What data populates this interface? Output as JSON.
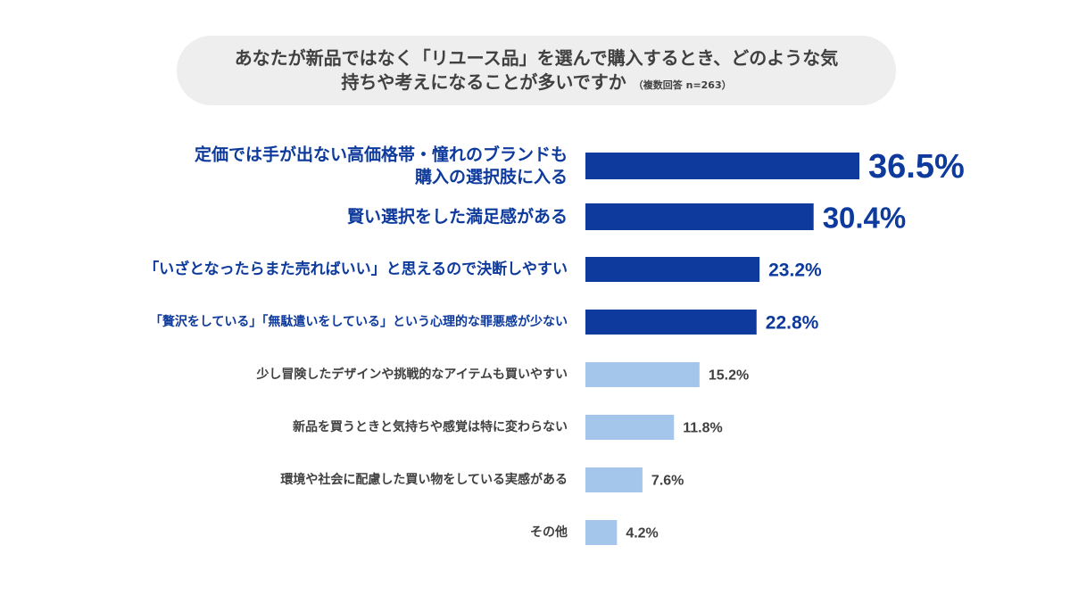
{
  "title": {
    "line1": "あなたが新品ではなく「リユース品」を選んで購入するとき、どのような気",
    "line2": "持ちや考えになることが多いですか",
    "note": "（複数回答 n=263）"
  },
  "colors": {
    "highlight": "#0d3a9c",
    "normal": "#a3c6ea",
    "highlight_text": "#0d3a9c",
    "normal_text": "#404040"
  },
  "chart_data": {
    "type": "bar",
    "orientation": "horizontal",
    "unit": "%",
    "categories": [
      [
        "定価では手が出ない高価格帯・憧れのブランドも",
        "購入の選択肢に入る"
      ],
      [
        "賢い選択をした満足感がある"
      ],
      [
        "「いざとなったらまた売ればいい」と思えるので決断しやすい"
      ],
      [
        "「贅沢をしている」「無駄遣いをしている」という心理的な罪悪感が少ない"
      ],
      [
        "少し冒険したデザインや挑戦的なアイテムも買いやすい"
      ],
      [
        "新品を買うときと気持ちや感覚は特に変わらない"
      ],
      [
        "環境や社会に配慮した買い物をしている実感がある"
      ],
      [
        "その他"
      ]
    ],
    "values": [
      36.5,
      30.4,
      23.2,
      22.8,
      15.2,
      11.8,
      7.6,
      4.2
    ],
    "value_labels": [
      "36.5%",
      "30.4%",
      "23.2%",
      "22.8%",
      "15.2%",
      "11.8%",
      "7.6%",
      "4.2%"
    ],
    "highlighted": [
      true,
      true,
      true,
      true,
      false,
      false,
      false,
      false
    ],
    "xlim": [
      0,
      40
    ],
    "grid": false,
    "legend": "none"
  }
}
